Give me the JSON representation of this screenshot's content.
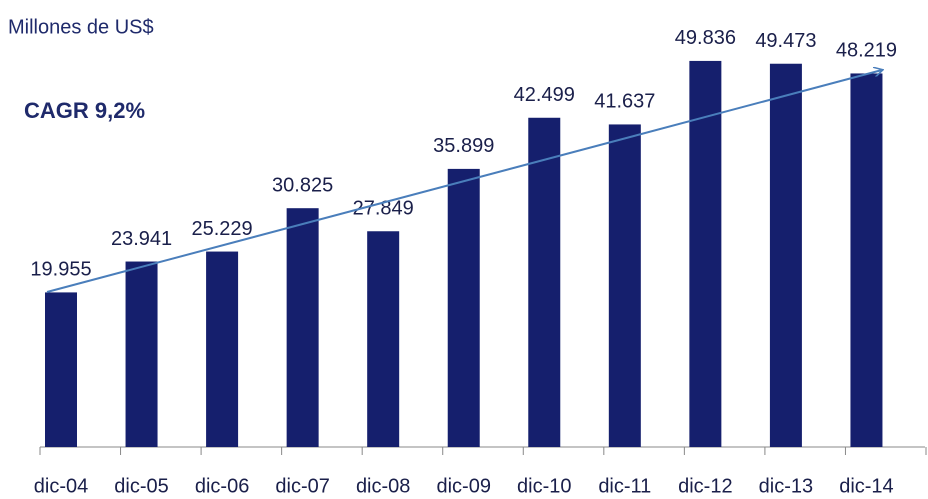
{
  "chart_data": {
    "type": "bar",
    "subtitle": "Millones de US$",
    "annotation": "CAGR 9,2%",
    "categories": [
      "dic-04",
      "dic-05",
      "dic-06",
      "dic-07",
      "dic-08",
      "dic-09",
      "dic-10",
      "dic-11",
      "dic-12",
      "dic-13",
      "dic-14"
    ],
    "values": [
      19955,
      23941,
      25229,
      30825,
      27849,
      35899,
      42499,
      41637,
      49836,
      49473,
      48219
    ],
    "value_labels": [
      "19.955",
      "23.941",
      "25.229",
      "30.825",
      "27.849",
      "35.899",
      "42.499",
      "41.637",
      "49.836",
      "49.473",
      "48.219"
    ],
    "color": "#151f6d",
    "ylim": [
      0,
      57700
    ]
  }
}
